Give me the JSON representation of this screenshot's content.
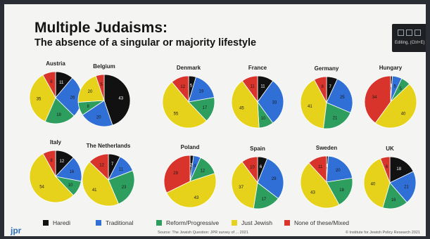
{
  "slide": {
    "title": "Multiple Judaisms:",
    "subtitle": "The absence of a singular or majority lifestyle",
    "logo": "jpr",
    "source": "Source: The Jewish Question: JPR survey of ... 2021",
    "copyright": "© Institute for Jewish Policy Research 2021",
    "toolbar_tip": "Editing, (Ctrl+E)"
  },
  "colors": {
    "Haredi": "#111111",
    "Traditional": "#2f6fd6",
    "Reform/Progressive": "#2e9e5f",
    "Just Jewish": "#e6d21a",
    "None of these/Mixed": "#d8342c"
  },
  "chart_data": {
    "type": "pie",
    "title": "Multiple Judaisms: The absence of a singular or majority lifestyle",
    "legend": [
      "Haredi",
      "Traditional",
      "Reform/Progressive",
      "Just Jewish",
      "None of these/Mixed"
    ],
    "legend_placement": "bottom",
    "pies": [
      {
        "country": "Austria",
        "values": [
          11,
          26,
          19,
          35,
          8
        ]
      },
      {
        "country": "Belgium",
        "values": [
          43,
          20,
          8,
          20,
          5
        ]
      },
      {
        "country": "Denmark",
        "values": [
          5,
          19,
          17,
          55,
          12
        ]
      },
      {
        "country": "France",
        "values": [
          11,
          33,
          10,
          45,
          11
        ]
      },
      {
        "country": "Germany",
        "values": [
          7,
          25,
          21,
          41,
          8
        ]
      },
      {
        "country": "Hungary",
        "values": [
          1,
          5,
          5,
          40,
          34
        ]
      },
      {
        "country": "Italy",
        "values": [
          12,
          16,
          10,
          54,
          8
        ]
      },
      {
        "country": "The Netherlands",
        "values": [
          7,
          11,
          23,
          41,
          12
        ]
      },
      {
        "country": "Poland",
        "values": [
          2,
          4,
          12,
          43,
          29
        ]
      },
      {
        "country": "Spain",
        "values": [
          6,
          29,
          17,
          37,
          10
        ]
      },
      {
        "country": "Sweden",
        "values": [
          1,
          20,
          18,
          43,
          11
        ]
      },
      {
        "country": "UK",
        "values": [
          18,
          21,
          16,
          40,
          6
        ]
      }
    ]
  }
}
